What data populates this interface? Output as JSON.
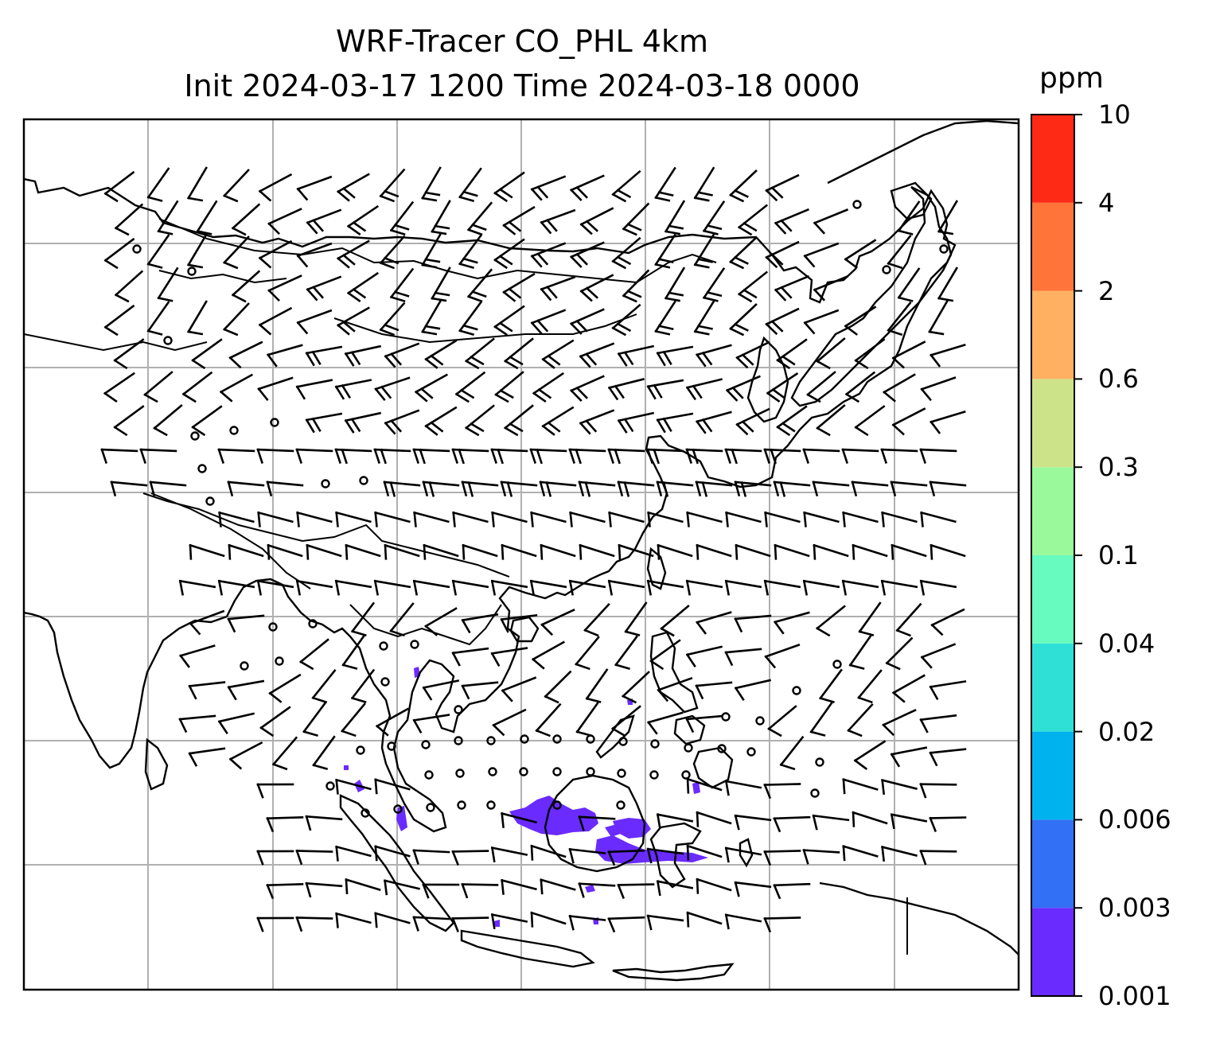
{
  "title": {
    "line1": "WRF-Tracer CO_PHL 4km",
    "line2": "Init 2024-03-17 1200 Time 2024-03-18 0000"
  },
  "colorbar": {
    "unit": "ppm",
    "levels": [
      "0.001",
      "0.003",
      "0.006",
      "0.02",
      "0.04",
      "0.1",
      "0.3",
      "0.6",
      "2",
      "4",
      "10"
    ],
    "colors": [
      "#6a2bff",
      "#3270f5",
      "#00b3ee",
      "#2fe0d6",
      "#67fbbf",
      "#9af99b",
      "#cde38a",
      "#ffb061",
      "#ff7539",
      "#ff2a16"
    ]
  },
  "map": {
    "gridlines": true,
    "overlay": "wind barbs",
    "filled_field": "CO_PHL tracer concentration"
  }
}
